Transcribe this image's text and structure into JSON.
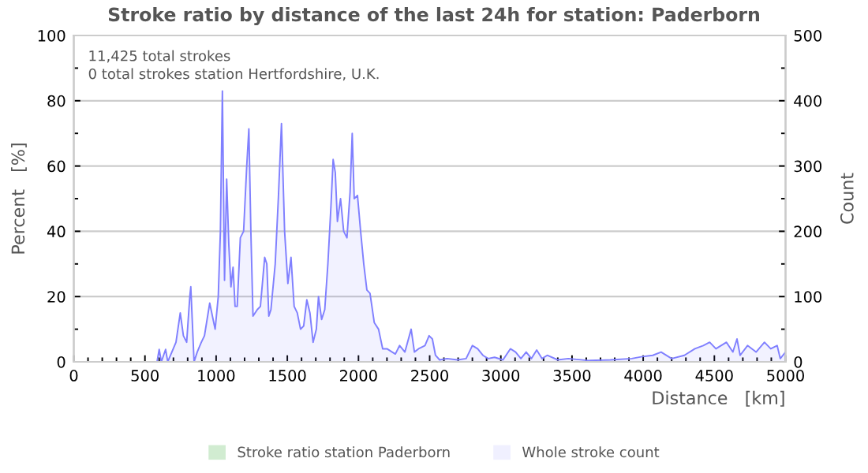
{
  "chart_data": {
    "type": "area",
    "title": "Stroke ratio by distance of the last 24h for station: Paderborn",
    "xlabel": "Distance   [km]",
    "ylabel": "Percent   [%]",
    "y2label": "Count",
    "annotations": [
      "11,425 total strokes",
      "0 total strokes station Hertfordshire, U.K."
    ],
    "xlim": [
      0,
      5000
    ],
    "xticks": [
      0,
      500,
      1000,
      1500,
      2000,
      2500,
      3000,
      3500,
      4000,
      4500,
      5000
    ],
    "ylim": [
      0,
      100
    ],
    "yticks": [
      0,
      20,
      40,
      60,
      80,
      100
    ],
    "y2lim": [
      0,
      500
    ],
    "y2ticks": [
      0,
      100,
      200,
      300,
      400,
      500
    ],
    "grid": "y",
    "legend": "bottom",
    "series": [
      {
        "name": "Stroke ratio station Paderborn",
        "color": "#b3e0b3"
      },
      {
        "name": "Whole stroke count",
        "color": "#8080ff",
        "axis": "y2",
        "x": [
          0,
          585,
          600,
          615,
          645,
          660,
          718,
          748,
          770,
          793,
          815,
          822,
          845,
          867,
          896,
          918,
          955,
          993,
          1015,
          1030,
          1044,
          1059,
          1074,
          1089,
          1104,
          1119,
          1133,
          1148,
          1170,
          1193,
          1215,
          1230,
          1244,
          1259,
          1289,
          1311,
          1341,
          1356,
          1370,
          1385,
          1415,
          1437,
          1459,
          1481,
          1504,
          1526,
          1548,
          1570,
          1593,
          1615,
          1637,
          1659,
          1681,
          1704,
          1719,
          1741,
          1763,
          1785,
          1807,
          1822,
          1837,
          1852,
          1874,
          1896,
          1919,
          1941,
          1956,
          1970,
          1993,
          2015,
          2037,
          2059,
          2081,
          2111,
          2141,
          2170,
          2200,
          2237,
          2259,
          2289,
          2326,
          2370,
          2393,
          2422,
          2467,
          2496,
          2519,
          2541,
          2570,
          2622,
          2696,
          2756,
          2800,
          2837,
          2874,
          2911,
          2956,
          3015,
          3067,
          3104,
          3141,
          3178,
          3215,
          3252,
          3289,
          3326,
          3400,
          3474,
          3622,
          3770,
          3919,
          3993,
          4067,
          4126,
          4200,
          4289,
          4363,
          4422,
          4467,
          4511,
          4585,
          4630,
          4659,
          4681,
          4733,
          4793,
          4852,
          4896,
          4941,
          4963,
          5000
        ],
        "values": [
          0,
          0,
          19,
          0,
          19,
          0,
          30,
          75,
          40,
          30,
          100,
          115,
          0,
          15,
          30,
          40,
          90,
          50,
          100,
          200,
          415,
          125,
          280,
          180,
          115,
          145,
          85,
          85,
          190,
          200,
          300,
          357,
          200,
          70,
          80,
          85,
          160,
          150,
          70,
          80,
          150,
          250,
          365,
          200,
          120,
          160,
          85,
          75,
          50,
          55,
          95,
          75,
          30,
          50,
          100,
          65,
          80,
          150,
          240,
          310,
          290,
          215,
          250,
          200,
          190,
          260,
          350,
          250,
          255,
          200,
          150,
          110,
          105,
          60,
          50,
          20,
          20,
          15,
          12,
          25,
          15,
          50,
          15,
          20,
          25,
          40,
          35,
          10,
          3,
          5,
          3,
          5,
          25,
          20,
          10,
          5,
          7,
          3,
          20,
          15,
          5,
          15,
          5,
          18,
          5,
          10,
          3,
          5,
          2,
          3,
          5,
          8,
          10,
          15,
          5,
          10,
          20,
          25,
          30,
          20,
          30,
          15,
          35,
          10,
          25,
          15,
          30,
          20,
          25,
          5,
          15
        ]
      }
    ]
  }
}
